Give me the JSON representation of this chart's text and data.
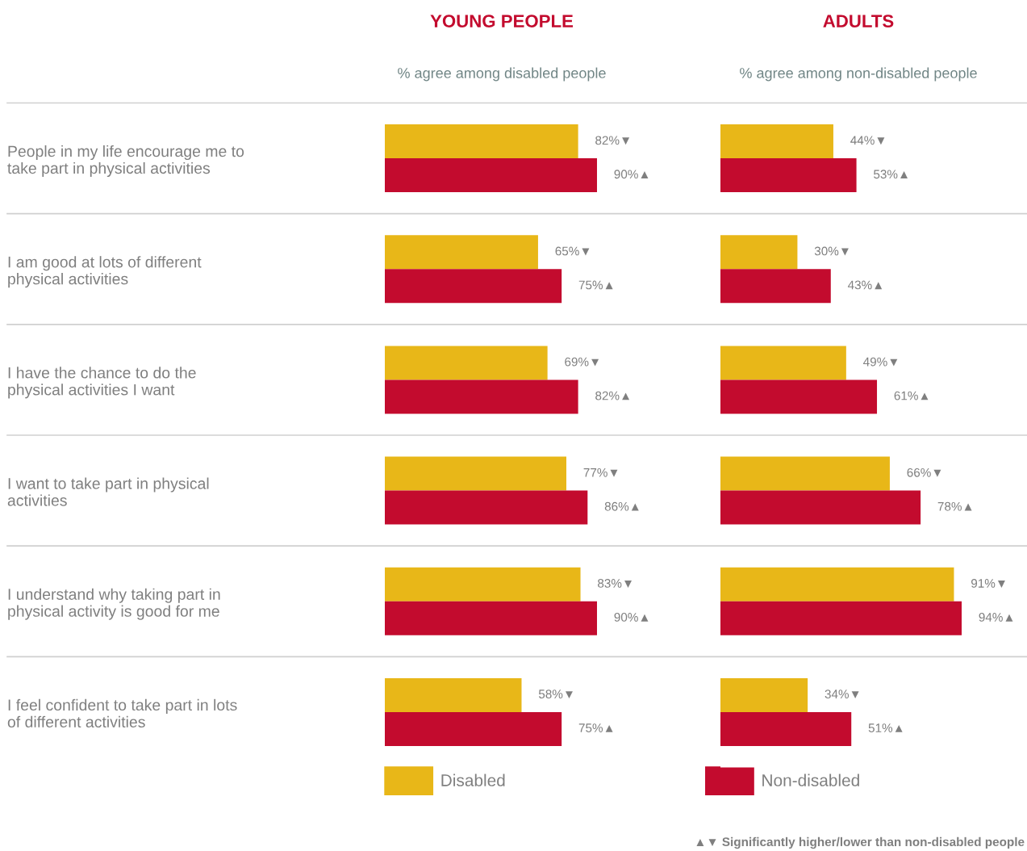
{
  "chart_data": [
    {
      "type": "bar",
      "orientation": "horizontal",
      "title": "YOUNG PEOPLE",
      "subtitle": "% agree among disabled people",
      "categories": [
        "People in my life encourage me to\ntake part in physical activities",
        "I am good at lots of different\nphysical activities",
        "I have the chance to do the\nphysical activities I want",
        "I want to take part in physical\nactivities",
        "I understand why taking part in\nphysical activity is good for me",
        "I feel confident to take part in lots\nof different activities"
      ],
      "series": [
        {
          "name": "Disabled",
          "color": "#e8b718",
          "values": [
            82,
            65,
            69,
            77,
            83,
            58
          ],
          "value_labels": [
            "82%▼",
            "65%▼",
            "69%▼",
            "77%▼",
            "83%▼",
            "58%▼"
          ]
        },
        {
          "name": "Non-disabled",
          "color": "#c30b2e",
          "values": [
            90,
            75,
            82,
            86,
            90,
            75
          ],
          "value_labels": [
            "90%▲",
            "75%▲",
            "82%▲",
            "86%▲",
            "90%▲",
            "75%▲"
          ]
        }
      ],
      "tick_labels": "y",
      "legend": "bottom",
      "grid": false
    },
    {
      "type": "bar",
      "orientation": "horizontal",
      "title": "ADULTS",
      "subtitle": "% agree among non-disabled people",
      "categories": [
        null,
        null,
        null,
        null,
        null,
        null
      ],
      "series": [
        {
          "color": "#e8b718",
          "values": [
            44,
            30,
            49,
            66,
            91,
            34
          ],
          "value_labels": [
            "44%▼",
            "30%▼",
            "49%▼",
            "66%▼",
            "91%▼",
            "34%▼"
          ]
        },
        {
          "color": "#c30b2e",
          "values": [
            53,
            43,
            61,
            78,
            94,
            51
          ],
          "value_labels": [
            "53%▲",
            "43%▲",
            "61%▲",
            "78%▲",
            "94%▲",
            "51%▲"
          ]
        }
      ],
      "tick_labels": false,
      "grid": false,
      "annotations": [
        "▲▼ Significantly higher/lower than non-disabled people"
      ]
    }
  ]
}
